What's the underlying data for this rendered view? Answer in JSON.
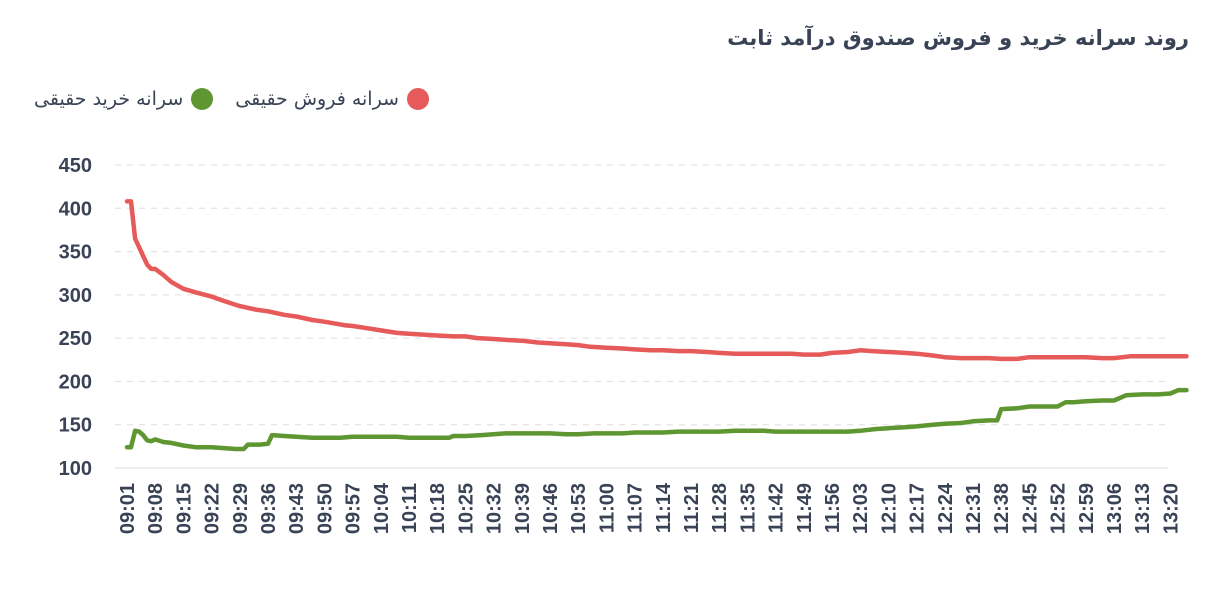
{
  "title": "روند سرانه خرید و فروش صندوق درآمد ثابت",
  "colors": {
    "sell": "#e65a5a",
    "buy": "#5e9632",
    "grid": "#dddddd",
    "text": "#3a4356"
  },
  "chart_data": {
    "type": "line",
    "title": "روند سرانه خرید و فروش صندوق درآمد ثابت",
    "legend_position": "top",
    "grid": true,
    "ylim": [
      100,
      450
    ],
    "yticks": [
      100,
      150,
      200,
      250,
      300,
      350,
      400,
      450
    ],
    "xticks": [
      "09:01",
      "09:08",
      "09:15",
      "09:22",
      "09:29",
      "09:36",
      "09:43",
      "09:50",
      "09:57",
      "10:04",
      "10:11",
      "10:18",
      "10:25",
      "10:32",
      "10:39",
      "10:46",
      "10:53",
      "11:00",
      "11:07",
      "11:14",
      "11:21",
      "11:28",
      "11:35",
      "11:42",
      "11:49",
      "11:56",
      "12:03",
      "12:10",
      "12:17",
      "12:24",
      "12:31",
      "12:38",
      "12:45",
      "12:52",
      "12:59",
      "13:06",
      "13:13",
      "13:20"
    ],
    "series": [
      {
        "name": "سرانه فروش حقیقی",
        "color": "#e65a5a",
        "points": [
          [
            "09:01",
            408
          ],
          [
            "09:02",
            408
          ],
          [
            "09:03",
            365
          ],
          [
            "09:04",
            355
          ],
          [
            "09:05",
            345
          ],
          [
            "09:06",
            335
          ],
          [
            "09:07",
            330
          ],
          [
            "09:08",
            330
          ],
          [
            "09:10",
            323
          ],
          [
            "09:12",
            315
          ],
          [
            "09:15",
            307
          ],
          [
            "09:18",
            303
          ],
          [
            "09:22",
            298
          ],
          [
            "09:25",
            293
          ],
          [
            "09:29",
            287
          ],
          [
            "09:33",
            283
          ],
          [
            "09:36",
            281
          ],
          [
            "09:40",
            277
          ],
          [
            "09:43",
            275
          ],
          [
            "09:47",
            271
          ],
          [
            "09:50",
            269
          ],
          [
            "09:55",
            265
          ],
          [
            "09:57",
            264
          ],
          [
            "10:00",
            262
          ],
          [
            "10:04",
            259
          ],
          [
            "10:08",
            256
          ],
          [
            "10:11",
            255
          ],
          [
            "10:15",
            254
          ],
          [
            "10:18",
            253
          ],
          [
            "10:22",
            252
          ],
          [
            "10:25",
            252
          ],
          [
            "10:28",
            250
          ],
          [
            "10:32",
            249
          ],
          [
            "10:35",
            248
          ],
          [
            "10:39",
            247
          ],
          [
            "10:43",
            245
          ],
          [
            "10:46",
            244
          ],
          [
            "10:50",
            243
          ],
          [
            "10:53",
            242
          ],
          [
            "10:56",
            240
          ],
          [
            "11:00",
            239
          ],
          [
            "11:04",
            238
          ],
          [
            "11:07",
            237
          ],
          [
            "11:11",
            236
          ],
          [
            "11:14",
            236
          ],
          [
            "11:18",
            235
          ],
          [
            "11:21",
            235
          ],
          [
            "11:25",
            234
          ],
          [
            "11:28",
            233
          ],
          [
            "11:32",
            232
          ],
          [
            "11:35",
            232
          ],
          [
            "11:39",
            232
          ],
          [
            "11:42",
            232
          ],
          [
            "11:46",
            232
          ],
          [
            "11:49",
            231
          ],
          [
            "11:53",
            231
          ],
          [
            "11:56",
            233
          ],
          [
            "12:00",
            234
          ],
          [
            "12:03",
            236
          ],
          [
            "12:06",
            235
          ],
          [
            "12:10",
            234
          ],
          [
            "12:14",
            233
          ],
          [
            "12:17",
            232
          ],
          [
            "12:21",
            230
          ],
          [
            "12:24",
            228
          ],
          [
            "12:28",
            227
          ],
          [
            "12:31",
            227
          ],
          [
            "12:35",
            227
          ],
          [
            "12:38",
            226
          ],
          [
            "12:42",
            226
          ],
          [
            "12:45",
            228
          ],
          [
            "12:49",
            228
          ],
          [
            "12:52",
            228
          ],
          [
            "12:56",
            228
          ],
          [
            "12:59",
            228
          ],
          [
            "13:03",
            227
          ],
          [
            "13:06",
            227
          ],
          [
            "13:10",
            229
          ],
          [
            "13:13",
            229
          ],
          [
            "13:17",
            229
          ],
          [
            "13:20",
            229
          ],
          [
            "13:24",
            229
          ]
        ]
      },
      {
        "name": "سرانه خرید حقیقی",
        "color": "#5e9632",
        "points": [
          [
            "09:01",
            124
          ],
          [
            "09:02",
            124
          ],
          [
            "09:03",
            143
          ],
          [
            "09:04",
            142
          ],
          [
            "09:05",
            138
          ],
          [
            "09:06",
            132
          ],
          [
            "09:07",
            131
          ],
          [
            "09:08",
            133
          ],
          [
            "09:10",
            130
          ],
          [
            "09:12",
            129
          ],
          [
            "09:15",
            126
          ],
          [
            "09:18",
            124
          ],
          [
            "09:22",
            124
          ],
          [
            "09:25",
            123
          ],
          [
            "09:28",
            122
          ],
          [
            "09:30",
            122
          ],
          [
            "09:31",
            127
          ],
          [
            "09:34",
            127
          ],
          [
            "09:36",
            128
          ],
          [
            "09:37",
            138
          ],
          [
            "09:40",
            137
          ],
          [
            "09:43",
            136
          ],
          [
            "09:47",
            135
          ],
          [
            "09:50",
            135
          ],
          [
            "09:54",
            135
          ],
          [
            "09:57",
            136
          ],
          [
            "10:00",
            136
          ],
          [
            "10:04",
            136
          ],
          [
            "10:08",
            136
          ],
          [
            "10:11",
            135
          ],
          [
            "10:15",
            135
          ],
          [
            "10:18",
            135
          ],
          [
            "10:21",
            135
          ],
          [
            "10:22",
            137
          ],
          [
            "10:25",
            137
          ],
          [
            "10:29",
            138
          ],
          [
            "10:32",
            139
          ],
          [
            "10:35",
            140
          ],
          [
            "10:39",
            140
          ],
          [
            "10:43",
            140
          ],
          [
            "10:46",
            140
          ],
          [
            "10:50",
            139
          ],
          [
            "10:53",
            139
          ],
          [
            "10:57",
            140
          ],
          [
            "11:00",
            140
          ],
          [
            "11:04",
            140
          ],
          [
            "11:07",
            141
          ],
          [
            "11:11",
            141
          ],
          [
            "11:14",
            141
          ],
          [
            "11:18",
            142
          ],
          [
            "11:21",
            142
          ],
          [
            "11:25",
            142
          ],
          [
            "11:28",
            142
          ],
          [
            "11:32",
            143
          ],
          [
            "11:35",
            143
          ],
          [
            "11:39",
            143
          ],
          [
            "11:42",
            142
          ],
          [
            "11:46",
            142
          ],
          [
            "11:49",
            142
          ],
          [
            "11:53",
            142
          ],
          [
            "11:56",
            142
          ],
          [
            "12:00",
            142
          ],
          [
            "12:03",
            143
          ],
          [
            "12:07",
            145
          ],
          [
            "12:10",
            146
          ],
          [
            "12:14",
            147
          ],
          [
            "12:17",
            148
          ],
          [
            "12:21",
            150
          ],
          [
            "12:24",
            151
          ],
          [
            "12:28",
            152
          ],
          [
            "12:31",
            154
          ],
          [
            "12:35",
            155
          ],
          [
            "12:37",
            155
          ],
          [
            "12:38",
            168
          ],
          [
            "12:42",
            169
          ],
          [
            "12:45",
            171
          ],
          [
            "12:49",
            171
          ],
          [
            "12:52",
            171
          ],
          [
            "12:54",
            176
          ],
          [
            "12:56",
            176
          ],
          [
            "12:59",
            177
          ],
          [
            "13:03",
            178
          ],
          [
            "13:06",
            178
          ],
          [
            "13:09",
            184
          ],
          [
            "13:13",
            185
          ],
          [
            "13:17",
            185
          ],
          [
            "13:20",
            186
          ],
          [
            "13:22",
            190
          ],
          [
            "13:24",
            190
          ]
        ]
      }
    ]
  }
}
